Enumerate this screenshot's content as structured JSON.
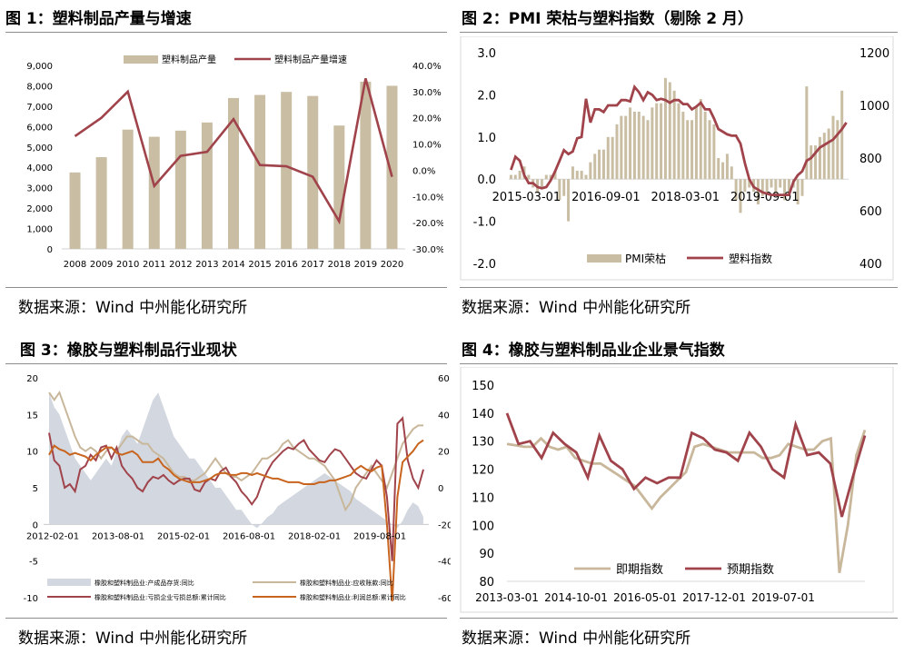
{
  "figures": [
    {
      "title": "图 1：塑料制品产量与增速",
      "source": "数据来源：Wind 中州能化研究所"
    },
    {
      "title": "图 2：PMI 荣枯与塑料指数（剔除 2 月）",
      "source": "数据来源：Wind 中州能化研究所"
    },
    {
      "title": "图 3：橡胶与塑料制品行业现状",
      "source": "数据来源：Wind 中州能化研究所"
    },
    {
      "title": "图 4：橡胶与塑料制品业企业景气指数",
      "source": "数据来源：Wind 中州能化研究所"
    }
  ],
  "colors": {
    "tan": "#c9bea3",
    "red": "#a0434b",
    "gray_area": "#d3d8e0",
    "beige": "#c8b79a",
    "orange": "#c8641e"
  },
  "chart_data": [
    {
      "type": "bar",
      "categories": [
        "2008",
        "2009",
        "2010",
        "2011",
        "2012",
        "2013",
        "2014",
        "2015",
        "2016",
        "2017",
        "2018",
        "2019",
        "2020"
      ],
      "series": [
        {
          "name": "塑料制品产量",
          "type": "bar",
          "axis": "left",
          "values": [
            3750,
            4500,
            5850,
            5500,
            5800,
            6200,
            7400,
            7550,
            7700,
            7500,
            6050,
            8200,
            8000
          ]
        },
        {
          "name": "塑料制品产量增速",
          "type": "line",
          "axis": "right",
          "values": [
            13,
            20,
            30,
            -6,
            5.5,
            7,
            19.5,
            2,
            1.5,
            -2.5,
            -19.5,
            35,
            -2.5
          ]
        }
      ],
      "y_left": {
        "min": 0,
        "max": 9000,
        "ticks": [
          "0",
          "1,000",
          "2,000",
          "3,000",
          "4,000",
          "5,000",
          "6,000",
          "7,000",
          "8,000",
          "9,000"
        ]
      },
      "y_right": {
        "min": -30,
        "max": 40,
        "ticks": [
          "-30.0%",
          "-20.0%",
          "-10.0%",
          "0.0%",
          "10.0%",
          "20.0%",
          "30.0%",
          "40.0%"
        ]
      },
      "legend": "top"
    },
    {
      "type": "bar",
      "x_ticks": [
        "2015-03-01",
        "2016-09-01",
        "2018-03-01",
        "2019-09-01"
      ],
      "series": [
        {
          "name": "PMI荣枯",
          "type": "bar",
          "axis": "left",
          "values": [
            0.1,
            0.1,
            0.2,
            0.3,
            0.1,
            -0.2,
            -0.3,
            -0.2,
            0.1,
            0.1,
            0.2,
            -0.5,
            -0.4,
            -1,
            0.3,
            0.2,
            0.2,
            0.1,
            0.4,
            0.6,
            0.7,
            0.7,
            1,
            1,
            1.3,
            1.5,
            1.5,
            1.7,
            1.6,
            1.6,
            1.5,
            1.4,
            1.7,
            1.8,
            1.8,
            2.4,
            2.3,
            2.1,
            1.8,
            1.6,
            1.4,
            1.4,
            1.7,
            1.9,
            1.6,
            1.4,
            1.3,
            0.5,
            0.4,
            0.6,
            0.3,
            -0.5,
            -0.8,
            -0.3,
            -0.2,
            -0.3,
            -0.6,
            -0.4,
            -0.3,
            -0.2,
            -0.4,
            -0.2,
            -0.5,
            -0.4,
            -0.2,
            -0.6,
            -0.4,
            2.2,
            0.8,
            0.8,
            1,
            1.1,
            1.2,
            1.5,
            1.4,
            2.1
          ]
        },
        {
          "name": "塑料指数",
          "type": "line",
          "axis": "right",
          "values": [
            755,
            805,
            790,
            735,
            705,
            705,
            690,
            685,
            690,
            715,
            750,
            790,
            830,
            815,
            825,
            875,
            880,
            1025,
            935,
            985,
            985,
            975,
            1000,
            1000,
            1000,
            1020,
            1020,
            1015,
            1070,
            1050,
            1020,
            1050,
            1040,
            1020,
            1025,
            1020,
            1010,
            1020,
            1020,
            1005,
            1005,
            985,
            995,
            1010,
            985,
            985,
            950,
            910,
            900,
            890,
            885,
            885,
            855,
            780,
            720,
            690,
            680,
            670,
            665,
            660,
            660,
            660,
            660,
            660,
            710,
            735,
            750,
            790,
            800,
            820,
            840,
            850,
            860,
            870,
            890,
            910,
            935
          ]
        },
        {
          "name": "",
          "type": "line",
          "axis": "right",
          "hidden": true,
          "values": []
        }
      ],
      "y_left": {
        "min": -2,
        "max": 3,
        "ticks": [
          "-2.0",
          "-1.0",
          "0.0",
          "1.0",
          "2.0",
          "3.0"
        ]
      },
      "y_right": {
        "min": 400,
        "max": 1200,
        "ticks": [
          "400",
          "600",
          "800",
          "1000",
          "1200"
        ]
      },
      "legend": "bottom"
    },
    {
      "type": "line",
      "x_ticks": [
        "2012-02-01",
        "2013-08-01",
        "2015-02-01",
        "2016-08-01",
        "2018-02-01",
        "2019-08-01"
      ],
      "series": [
        {
          "name": "橡胶和塑料制品业:产成品存货:同比",
          "type": "area",
          "axis": "left",
          "values": [
            18,
            16,
            15,
            13,
            11,
            9,
            8,
            7,
            6,
            7,
            8,
            9,
            8,
            10,
            12,
            13,
            12,
            11,
            13,
            15,
            17,
            18,
            16,
            14,
            12,
            11,
            10,
            9,
            9,
            8,
            7,
            6,
            5,
            5,
            4,
            3,
            2,
            2,
            1,
            0,
            -0.5,
            0.2,
            1,
            1.5,
            2.5,
            3,
            3.5,
            4,
            4.5,
            5,
            5.5,
            6,
            6.5,
            7,
            6.5,
            6,
            5.5,
            5,
            4.5,
            3.5,
            3,
            2.5,
            2,
            1.5,
            1,
            0.5,
            0,
            -0.5,
            0.5,
            2,
            3,
            2.5,
            1
          ]
        },
        {
          "name": "橡胶和塑料制品业:应收账款:同比",
          "type": "line",
          "axis": "left",
          "values": [
            18,
            17,
            18,
            16,
            14,
            12,
            10.5,
            10,
            10.5,
            10,
            9,
            10,
            10.5,
            10,
            11,
            12,
            12,
            11.5,
            11,
            11,
            10,
            9.5,
            9,
            8,
            7,
            6.5,
            6.5,
            6,
            6,
            6.5,
            7,
            8,
            9,
            8,
            7,
            6.5,
            6.5,
            6,
            6.5,
            7,
            8,
            9,
            9,
            9.5,
            10,
            11,
            11.5,
            10.5,
            10,
            9.5,
            9,
            9,
            8.5,
            8,
            7,
            6,
            4,
            2,
            3,
            5,
            6,
            7,
            8,
            7,
            6,
            5,
            7,
            9,
            11,
            12,
            13,
            13.5,
            13.5
          ]
        },
        {
          "name": "橡胶和塑料制品业:亏损企业亏损总额:累计同比",
          "type": "line",
          "axis": "right",
          "values": [
            30,
            15,
            12,
            0,
            2,
            -2,
            10,
            12,
            18,
            15,
            22,
            23,
            16,
            22,
            12,
            8,
            5,
            0,
            -2,
            3,
            6,
            5,
            7,
            4,
            2,
            4,
            5,
            5,
            -1,
            -2,
            3,
            5,
            4,
            9,
            11,
            6,
            3,
            -2,
            -5,
            -9,
            -5,
            3,
            9,
            14,
            17,
            20,
            22,
            21,
            24,
            26,
            21,
            18,
            15,
            14,
            18,
            21,
            20,
            16,
            12,
            8,
            6,
            5,
            10,
            15,
            12,
            -5,
            -40,
            35,
            38,
            15,
            5,
            0,
            10
          ]
        },
        {
          "name": "橡胶和塑料制品业:利润总额:累计同比",
          "type": "line",
          "axis": "right",
          "values": [
            18,
            23,
            21,
            20,
            18,
            19,
            18,
            17,
            15,
            18,
            20,
            22,
            22,
            19,
            18,
            19,
            20,
            18,
            14,
            14,
            14,
            16,
            12,
            10,
            7,
            5,
            4,
            3,
            3,
            3,
            4,
            5,
            7,
            8,
            8,
            7,
            7,
            8,
            8,
            7,
            8,
            7,
            6,
            5,
            5,
            4,
            3,
            3,
            3,
            2,
            2,
            2,
            3,
            3,
            4,
            4,
            5,
            6,
            7,
            10,
            12,
            10,
            9,
            11,
            12,
            -20,
            -62,
            -5,
            14,
            17,
            20,
            24,
            26
          ]
        }
      ],
      "y_left": {
        "min": -10,
        "max": 20,
        "ticks": [
          "-10",
          "-5",
          "0",
          "5",
          "10",
          "15",
          "20"
        ]
      },
      "y_right": {
        "min": -60,
        "max": 60,
        "ticks": [
          "-60",
          "-40",
          "-20",
          "0",
          "20",
          "40",
          "60"
        ]
      },
      "legend": "bottom"
    },
    {
      "type": "line",
      "x_ticks": [
        "2013-03-01",
        "2014-10-01",
        "2016-05-01",
        "2017-12-01",
        "2019-07-01"
      ],
      "series": [
        {
          "name": "即期指数",
          "type": "line",
          "values": [
            129,
            128.5,
            128,
            128,
            131,
            128,
            127,
            128,
            124,
            123,
            122,
            122,
            120,
            118,
            116,
            114,
            110,
            106,
            110,
            113,
            116,
            119,
            128,
            129,
            128,
            127,
            126,
            126,
            126,
            126,
            124,
            124,
            125,
            129,
            128,
            127,
            127,
            130,
            131,
            83,
            100,
            125,
            134
          ]
        },
        {
          "name": "预期指数",
          "type": "line",
          "values": [
            140,
            129,
            130,
            124,
            133,
            129,
            126,
            117,
            132,
            123,
            120,
            113,
            117,
            115,
            117,
            117,
            133,
            131,
            127,
            126,
            123,
            133,
            128,
            120,
            117,
            136,
            125,
            126,
            122,
            103,
            118,
            132
          ]
        }
      ],
      "y": {
        "min": 80,
        "max": 150,
        "ticks": [
          "80",
          "90",
          "100",
          "110",
          "120",
          "130",
          "140",
          "150"
        ]
      },
      "legend": "bottom"
    }
  ]
}
